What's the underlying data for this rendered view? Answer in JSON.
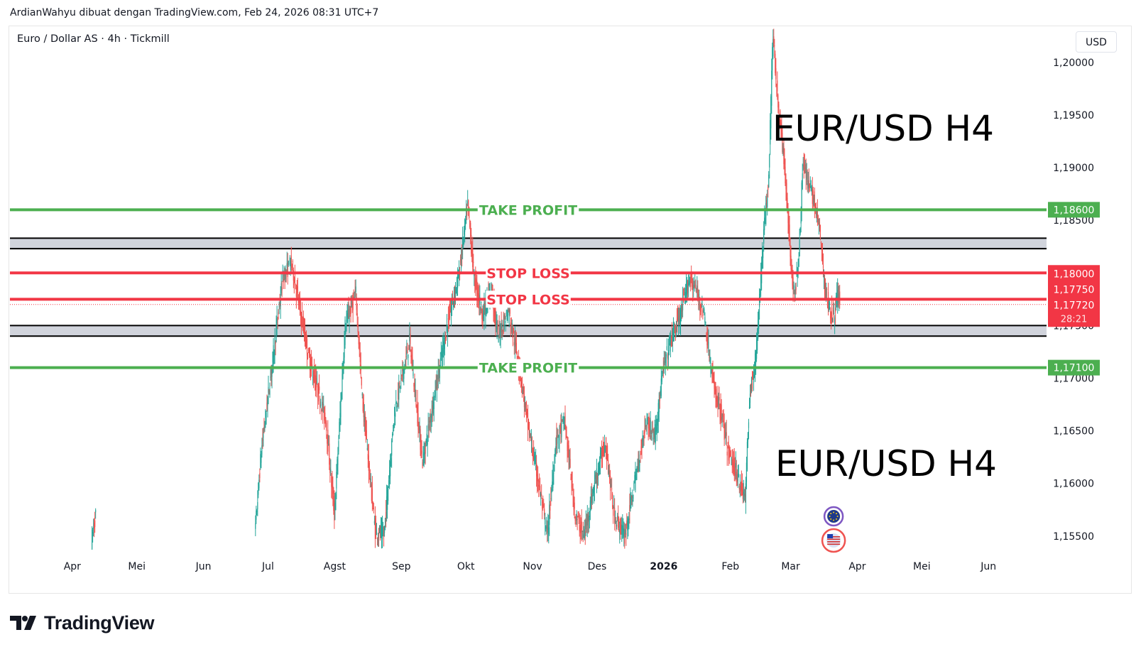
{
  "header": {
    "attribution": "ArdianWahyu dibuat dengan TradingView.com, Feb 24, 2026 08:31 UTC+7"
  },
  "chart_header": {
    "symbol_title": "Euro / Dollar AS · 4h · Tickmill",
    "currency_button": "USD"
  },
  "brand": {
    "name": "TradingView",
    "logo_icon": "tradingview-logo-icon"
  },
  "chart_data": {
    "type": "candlestick",
    "price_range": [
      1.1535,
      1.2035
    ],
    "price_ticks": [
      "1,15500",
      "1,16000",
      "1,16500",
      "1,17000",
      "1,17500",
      "1,18000",
      "1,18500",
      "1,19000",
      "1,19500",
      "1,20000"
    ],
    "price_tick_values": [
      1.155,
      1.16,
      1.165,
      1.17,
      1.175,
      1.18,
      1.185,
      1.19,
      1.195,
      1.2
    ],
    "time_labels": [
      "Apr",
      "Mei",
      "Jun",
      "Jul",
      "Agst",
      "Sep",
      "Okt",
      "Nov",
      "Des",
      "2026",
      "Feb",
      "Mar",
      "Apr",
      "Mei",
      "Jun"
    ],
    "time_range": [
      "2025-03-03",
      "2026-06-28"
    ],
    "time_label_dates": [
      "2025-04-01",
      "2025-05-01",
      "2025-06-01",
      "2025-07-01",
      "2025-08-01",
      "2025-09-01",
      "2025-10-01",
      "2025-11-01",
      "2025-12-01",
      "2026-01-01",
      "2026-02-01",
      "2026-03-01",
      "2026-04-01",
      "2026-05-01",
      "2026-06-01"
    ],
    "bold_time_labels": [
      "2026"
    ],
    "series_path": [
      {
        "date": "2025-04-10",
        "price": 1.1545
      },
      {
        "date": "2025-04-12",
        "price": 1.157
      },
      {
        "date": "2025-06-25",
        "price": 1.155
      },
      {
        "date": "2025-06-28",
        "price": 1.163
      },
      {
        "date": "2025-07-01",
        "price": 1.168
      },
      {
        "date": "2025-07-08",
        "price": 1.1795
      },
      {
        "date": "2025-07-12",
        "price": 1.181
      },
      {
        "date": "2025-07-20",
        "price": 1.172
      },
      {
        "date": "2025-07-28",
        "price": 1.166
      },
      {
        "date": "2025-08-01",
        "price": 1.157
      },
      {
        "date": "2025-08-06",
        "price": 1.175
      },
      {
        "date": "2025-08-11",
        "price": 1.178
      },
      {
        "date": "2025-08-14",
        "price": 1.168
      },
      {
        "date": "2025-08-20",
        "price": 1.1555
      },
      {
        "date": "2025-08-24",
        "price": 1.155
      },
      {
        "date": "2025-08-29",
        "price": 1.167
      },
      {
        "date": "2025-09-05",
        "price": 1.1735
      },
      {
        "date": "2025-09-11",
        "price": 1.162
      },
      {
        "date": "2025-09-17",
        "price": 1.169
      },
      {
        "date": "2025-09-23",
        "price": 1.1755
      },
      {
        "date": "2025-09-28",
        "price": 1.18
      },
      {
        "date": "2025-10-02",
        "price": 1.1865
      },
      {
        "date": "2025-10-05",
        "price": 1.1795
      },
      {
        "date": "2025-10-09",
        "price": 1.176
      },
      {
        "date": "2025-10-13",
        "price": 1.1785
      },
      {
        "date": "2025-10-16",
        "price": 1.174
      },
      {
        "date": "2025-10-21",
        "price": 1.1765
      },
      {
        "date": "2025-10-26",
        "price": 1.171
      },
      {
        "date": "2025-10-30",
        "price": 1.1655
      },
      {
        "date": "2025-11-04",
        "price": 1.16
      },
      {
        "date": "2025-11-08",
        "price": 1.155
      },
      {
        "date": "2025-11-12",
        "price": 1.164
      },
      {
        "date": "2025-11-16",
        "price": 1.166
      },
      {
        "date": "2025-11-21",
        "price": 1.157
      },
      {
        "date": "2025-11-25",
        "price": 1.155
      },
      {
        "date": "2025-11-30",
        "price": 1.16
      },
      {
        "date": "2025-12-05",
        "price": 1.164
      },
      {
        "date": "2025-12-09",
        "price": 1.157
      },
      {
        "date": "2025-12-14",
        "price": 1.155
      },
      {
        "date": "2025-12-19",
        "price": 1.1605
      },
      {
        "date": "2025-12-24",
        "price": 1.166
      },
      {
        "date": "2025-12-28",
        "price": 1.1645
      },
      {
        "date": "2026-01-01",
        "price": 1.171
      },
      {
        "date": "2026-01-05",
        "price": 1.174
      },
      {
        "date": "2026-01-09",
        "price": 1.176
      },
      {
        "date": "2026-01-13",
        "price": 1.1795
      },
      {
        "date": "2026-01-16",
        "price": 1.1785
      },
      {
        "date": "2026-01-20",
        "price": 1.176
      },
      {
        "date": "2026-01-24",
        "price": 1.1695
      },
      {
        "date": "2026-01-28",
        "price": 1.1665
      },
      {
        "date": "2026-01-31",
        "price": 1.163
      },
      {
        "date": "2026-02-04",
        "price": 1.161
      },
      {
        "date": "2026-02-08",
        "price": 1.1585
      },
      {
        "date": "2026-02-10",
        "price": 1.168
      },
      {
        "date": "2026-02-13",
        "price": 1.172
      },
      {
        "date": "2026-02-16",
        "price": 1.182
      },
      {
        "date": "2026-02-19",
        "price": 1.1895
      },
      {
        "date": "2026-02-21",
        "price": 1.203
      },
      {
        "date": "2026-02-23",
        "price": 1.1965
      },
      {
        "date": "2026-02-25",
        "price": 1.193
      },
      {
        "date": "2026-02-28",
        "price": 1.1855
      },
      {
        "date": "2026-03-01",
        "price": 1.1815
      },
      {
        "date": "2026-03-03",
        "price": 1.1775
      },
      {
        "date": "2026-03-05",
        "price": 1.182
      },
      {
        "date": "2026-03-07",
        "price": 1.191
      },
      {
        "date": "2026-03-09",
        "price": 1.1885
      },
      {
        "date": "2026-03-12",
        "price": 1.187
      },
      {
        "date": "2026-03-15",
        "price": 1.1835
      },
      {
        "date": "2026-03-17",
        "price": 1.1785
      },
      {
        "date": "2026-03-19",
        "price": 1.177
      },
      {
        "date": "2026-03-21",
        "price": 1.1755
      },
      {
        "date": "2026-03-23",
        "price": 1.178
      },
      {
        "date": "2026-03-24",
        "price": 1.1772
      }
    ],
    "last_price": 1.1772,
    "countdown": "28:21",
    "horizontal_lines": [
      {
        "name": "take-profit-upper",
        "price": 1.186,
        "label": "TAKE PROFIT",
        "axis_label": "1,18600",
        "color": "#4caf50"
      },
      {
        "name": "stop-loss-upper",
        "price": 1.18,
        "label": "STOP LOSS",
        "axis_label": "1,18000",
        "color": "#f23645"
      },
      {
        "name": "stop-loss-lower",
        "price": 1.1775,
        "label": "STOP LOSS",
        "axis_label": "1,17750",
        "color": "#f23645"
      },
      {
        "name": "take-profit-lower",
        "price": 1.171,
        "label": "TAKE PROFIT",
        "axis_label": "1,17100",
        "color": "#4caf50"
      }
    ],
    "zones": [
      {
        "name": "resistance-zone",
        "top": 1.1833,
        "bottom": 1.1823
      },
      {
        "name": "support-zone",
        "top": 1.175,
        "bottom": 1.174
      }
    ],
    "last_price_label": "1,17720",
    "annotations": [
      {
        "name": "annotation-top",
        "text": "EUR/USD H4",
        "position": "upper-right"
      },
      {
        "name": "annotation-bottom",
        "text": "EUR/USD H4",
        "position": "lower-right"
      }
    ],
    "event_markers": [
      {
        "name": "eu-flag-icon",
        "date": "2026-03-21"
      },
      {
        "name": "us-flag-icon",
        "date": "2026-03-21"
      }
    ],
    "colors": {
      "up": "#26a69a",
      "down": "#ef5350",
      "take_profit": "#4caf50",
      "stop_loss": "#f23645",
      "zone_fill": "#d1d4dc"
    }
  }
}
